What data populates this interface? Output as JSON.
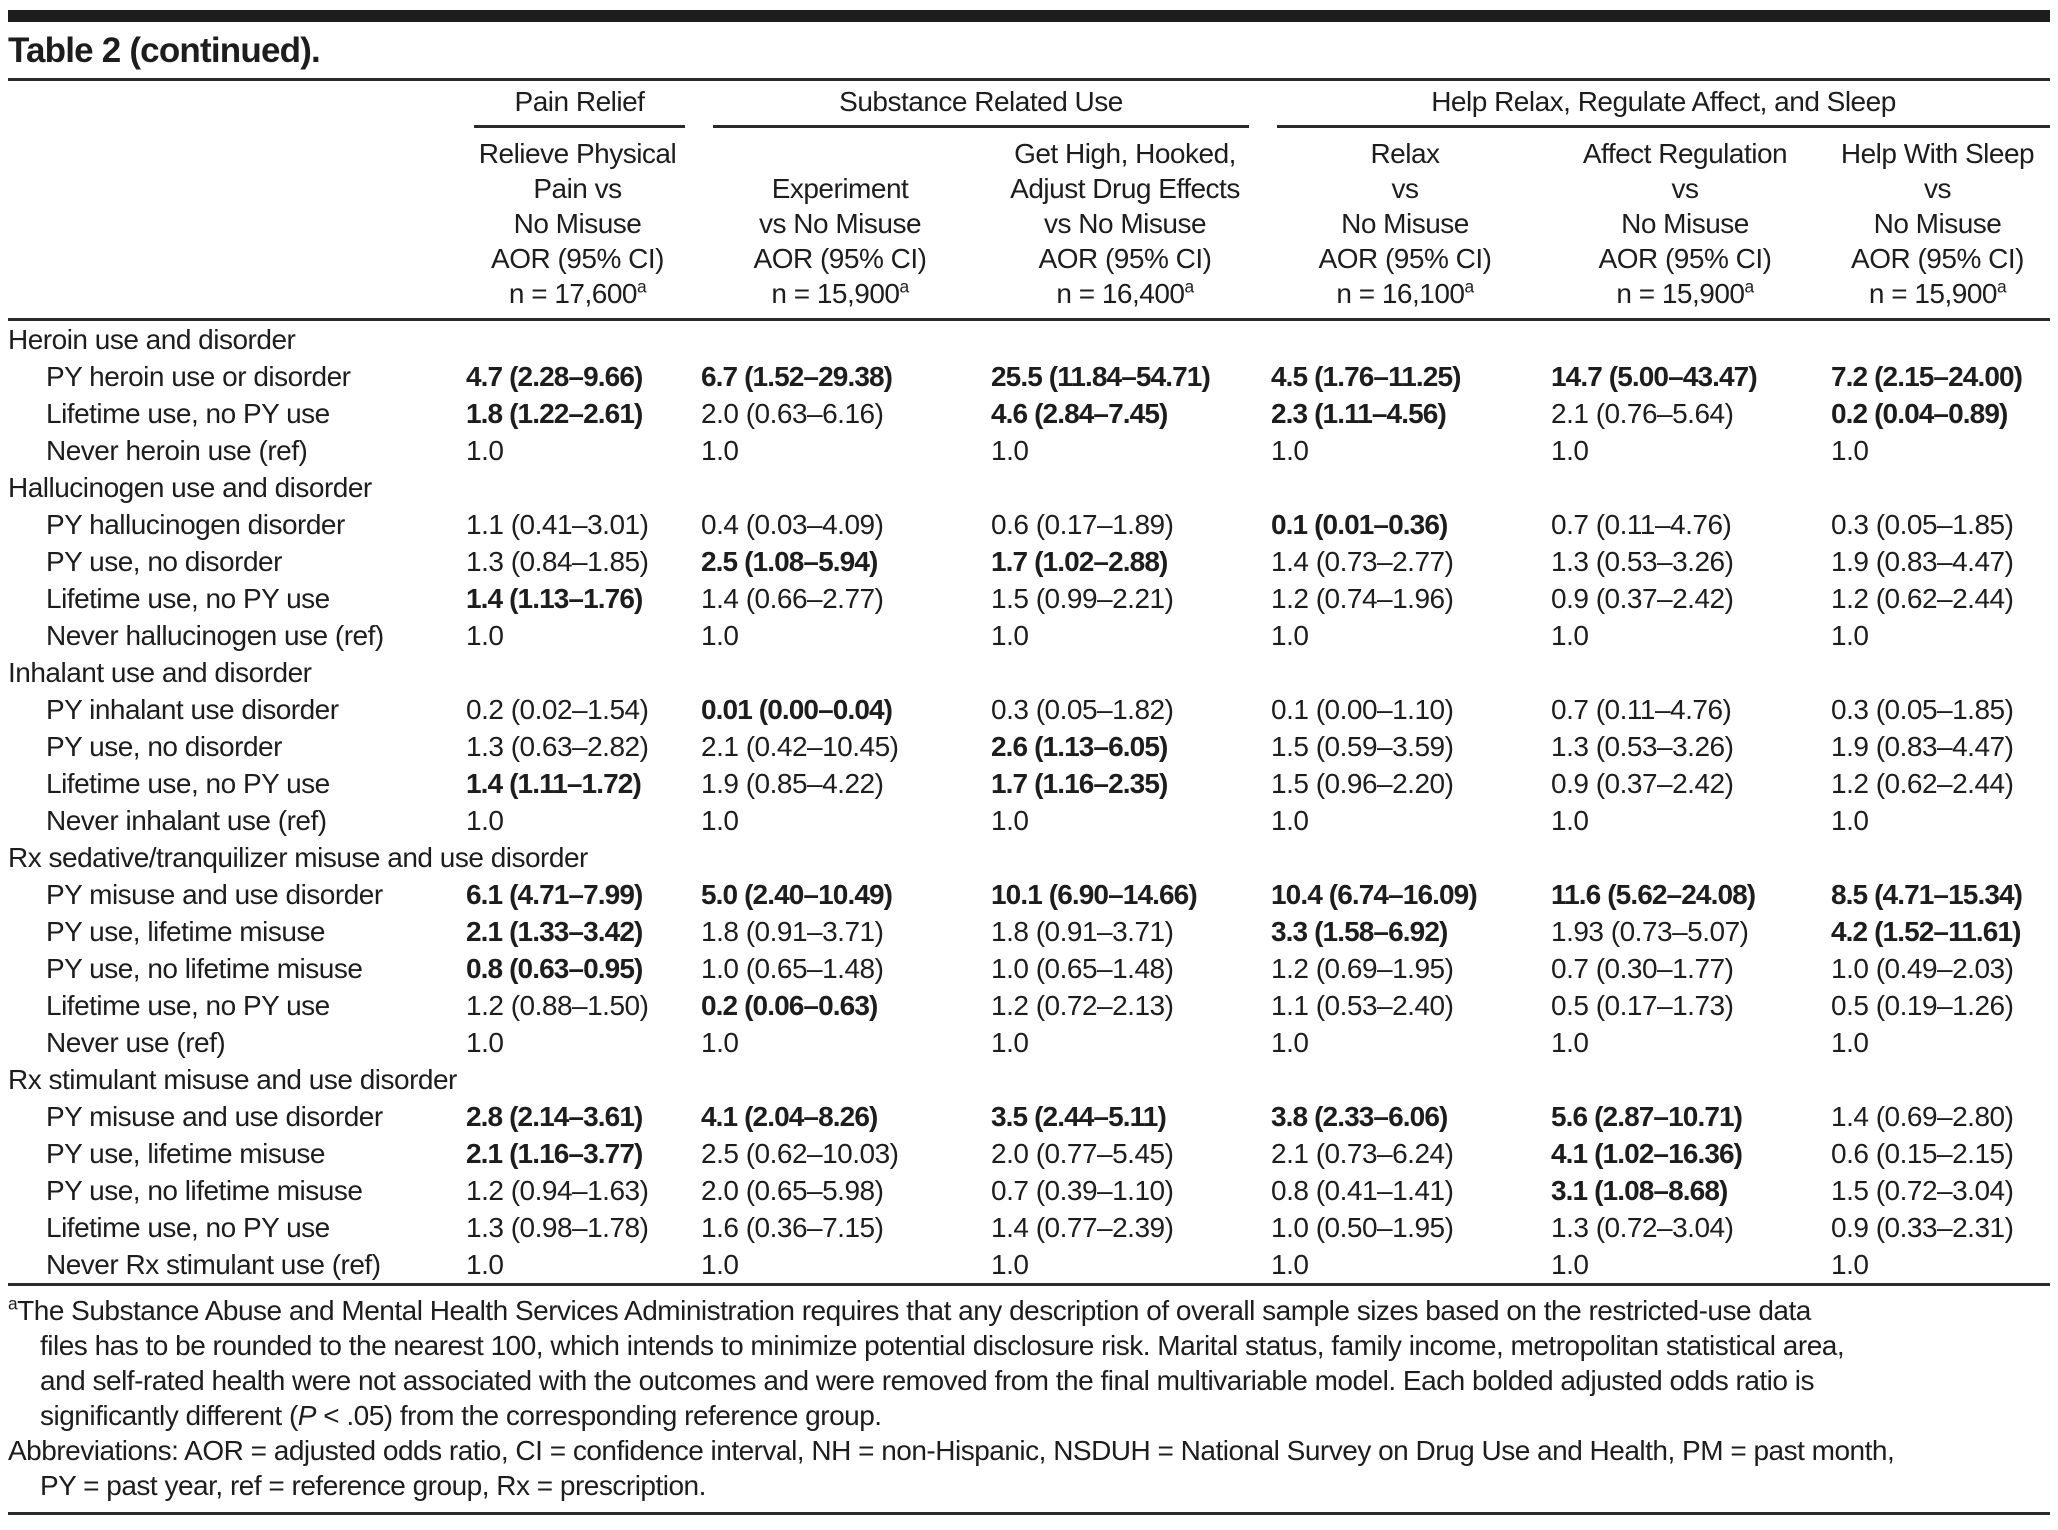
{
  "title": "Table 2 (continued).",
  "footnote_marker": "a",
  "header": {
    "groups": [
      {
        "label": "Pain Relief"
      },
      {
        "label": "Substance Related Use"
      },
      {
        "label": "Help Relax, Regulate Affect, and Sleep"
      }
    ],
    "columns": [
      {
        "lines": "Relieve Physical\nPain vs\nNo Misuse\nAOR (95% CI)",
        "n": "n = 17,600"
      },
      {
        "lines": "Experiment\nvs No Misuse\nAOR (95% CI)",
        "n": "n = 15,900"
      },
      {
        "lines": "Get High, Hooked,\nAdjust Drug Effects\nvs No Misuse\nAOR (95% CI)",
        "n": "n = 16,400"
      },
      {
        "lines": "Relax\nvs\nNo Misuse\nAOR (95% CI)",
        "n": "n = 16,100"
      },
      {
        "lines": "Affect Regulation\nvs\nNo Misuse\nAOR (95% CI)",
        "n": "n = 15,900"
      },
      {
        "lines": "Help With Sleep\nvs\nNo Misuse\nAOR (95% CI)",
        "n": "n = 15,900"
      }
    ]
  },
  "sections": [
    {
      "label": "Heroin use and disorder",
      "rows": [
        {
          "label": "PY heroin use or disorder",
          "cells": [
            {
              "t": "4.7 (2.28–9.66)",
              "b": true
            },
            {
              "t": "6.7 (1.52–29.38)",
              "b": true
            },
            {
              "t": "25.5 (11.84–54.71)",
              "b": true
            },
            {
              "t": "4.5 (1.76–11.25)",
              "b": true
            },
            {
              "t": "14.7 (5.00–43.47)",
              "b": true
            },
            {
              "t": "7.2 (2.15–24.00)",
              "b": true
            }
          ]
        },
        {
          "label": "Lifetime use, no PY use",
          "cells": [
            {
              "t": "1.8 (1.22–2.61)",
              "b": true
            },
            {
              "t": "2.0 (0.63–6.16)",
              "b": false
            },
            {
              "t": "4.6 (2.84–7.45)",
              "b": true
            },
            {
              "t": "2.3 (1.11–4.56)",
              "b": true
            },
            {
              "t": "2.1 (0.76–5.64)",
              "b": false
            },
            {
              "t": "0.2 (0.04–0.89)",
              "b": true
            }
          ]
        },
        {
          "label": "Never heroin use (ref)",
          "cells": [
            {
              "t": "1.0",
              "b": false
            },
            {
              "t": "1.0",
              "b": false
            },
            {
              "t": "1.0",
              "b": false
            },
            {
              "t": "1.0",
              "b": false
            },
            {
              "t": "1.0",
              "b": false
            },
            {
              "t": "1.0",
              "b": false
            }
          ]
        }
      ]
    },
    {
      "label": "Hallucinogen use and disorder",
      "rows": [
        {
          "label": "PY hallucinogen disorder",
          "cells": [
            {
              "t": "1.1 (0.41–3.01)",
              "b": false
            },
            {
              "t": "0.4 (0.03–4.09)",
              "b": false
            },
            {
              "t": "0.6 (0.17–1.89)",
              "b": false
            },
            {
              "t": "0.1 (0.01–0.36)",
              "b": true
            },
            {
              "t": "0.7 (0.11–4.76)",
              "b": false
            },
            {
              "t": "0.3 (0.05–1.85)",
              "b": false
            }
          ]
        },
        {
          "label": "PY use, no disorder",
          "cells": [
            {
              "t": "1.3 (0.84–1.85)",
              "b": false
            },
            {
              "t": "2.5 (1.08–5.94)",
              "b": true
            },
            {
              "t": "1.7 (1.02–2.88)",
              "b": true
            },
            {
              "t": "1.4 (0.73–2.77)",
              "b": false
            },
            {
              "t": "1.3 (0.53–3.26)",
              "b": false
            },
            {
              "t": "1.9 (0.83–4.47)",
              "b": false
            }
          ]
        },
        {
          "label": "Lifetime use, no PY use",
          "cells": [
            {
              "t": "1.4 (1.13–1.76)",
              "b": true
            },
            {
              "t": "1.4 (0.66–2.77)",
              "b": false
            },
            {
              "t": "1.5 (0.99–2.21)",
              "b": false
            },
            {
              "t": "1.2 (0.74–1.96)",
              "b": false
            },
            {
              "t": "0.9 (0.37–2.42)",
              "b": false
            },
            {
              "t": "1.2 (0.62–2.44)",
              "b": false
            }
          ]
        },
        {
          "label": "Never hallucinogen use (ref)",
          "cells": [
            {
              "t": "1.0",
              "b": false
            },
            {
              "t": "1.0",
              "b": false
            },
            {
              "t": "1.0",
              "b": false
            },
            {
              "t": "1.0",
              "b": false
            },
            {
              "t": "1.0",
              "b": false
            },
            {
              "t": "1.0",
              "b": false
            }
          ]
        }
      ]
    },
    {
      "label": "Inhalant use and disorder",
      "rows": [
        {
          "label": "PY inhalant use disorder",
          "cells": [
            {
              "t": "0.2 (0.02–1.54)",
              "b": false
            },
            {
              "t": "0.01 (0.00–0.04)",
              "b": true
            },
            {
              "t": "0.3 (0.05–1.82)",
              "b": false
            },
            {
              "t": "0.1 (0.00–1.10)",
              "b": false
            },
            {
              "t": "0.7 (0.11–4.76)",
              "b": false
            },
            {
              "t": "0.3 (0.05–1.85)",
              "b": false
            }
          ]
        },
        {
          "label": "PY use, no disorder",
          "cells": [
            {
              "t": "1.3 (0.63–2.82)",
              "b": false
            },
            {
              "t": "2.1 (0.42–10.45)",
              "b": false
            },
            {
              "t": "2.6 (1.13–6.05)",
              "b": true
            },
            {
              "t": "1.5 (0.59–3.59)",
              "b": false
            },
            {
              "t": "1.3 (0.53–3.26)",
              "b": false
            },
            {
              "t": "1.9 (0.83–4.47)",
              "b": false
            }
          ]
        },
        {
          "label": "Lifetime use, no PY use",
          "cells": [
            {
              "t": "1.4 (1.11–1.72)",
              "b": true
            },
            {
              "t": "1.9 (0.85–4.22)",
              "b": false
            },
            {
              "t": "1.7 (1.16–2.35)",
              "b": true
            },
            {
              "t": "1.5 (0.96–2.20)",
              "b": false
            },
            {
              "t": "0.9 (0.37–2.42)",
              "b": false
            },
            {
              "t": "1.2 (0.62–2.44)",
              "b": false
            }
          ]
        },
        {
          "label": "Never inhalant use (ref)",
          "cells": [
            {
              "t": "1.0",
              "b": false
            },
            {
              "t": "1.0",
              "b": false
            },
            {
              "t": "1.0",
              "b": false
            },
            {
              "t": "1.0",
              "b": false
            },
            {
              "t": "1.0",
              "b": false
            },
            {
              "t": "1.0",
              "b": false
            }
          ]
        }
      ]
    },
    {
      "label": "Rx sedative/tranquilizer misuse and use disorder",
      "rows": [
        {
          "label": "PY misuse and use disorder",
          "cells": [
            {
              "t": "6.1 (4.71–7.99)",
              "b": true
            },
            {
              "t": "5.0 (2.40–10.49)",
              "b": true
            },
            {
              "t": "10.1 (6.90–14.66)",
              "b": true
            },
            {
              "t": "10.4 (6.74–16.09)",
              "b": true
            },
            {
              "t": "11.6 (5.62–24.08)",
              "b": true
            },
            {
              "t": "8.5 (4.71–15.34)",
              "b": true
            }
          ]
        },
        {
          "label": "PY use, lifetime misuse",
          "cells": [
            {
              "t": "2.1 (1.33–3.42)",
              "b": true
            },
            {
              "t": "1.8 (0.91–3.71)",
              "b": false
            },
            {
              "t": "1.8 (0.91–3.71)",
              "b": false
            },
            {
              "t": "3.3 (1.58–6.92)",
              "b": true
            },
            {
              "t": "1.93 (0.73–5.07)",
              "b": false
            },
            {
              "t": "4.2 (1.52–11.61)",
              "b": true
            }
          ]
        },
        {
          "label": "PY use, no lifetime misuse",
          "cells": [
            {
              "t": "0.8 (0.63–0.95)",
              "b": true
            },
            {
              "t": "1.0 (0.65–1.48)",
              "b": false
            },
            {
              "t": "1.0 (0.65–1.48)",
              "b": false
            },
            {
              "t": "1.2 (0.69–1.95)",
              "b": false
            },
            {
              "t": "0.7 (0.30–1.77)",
              "b": false
            },
            {
              "t": "1.0 (0.49–2.03)",
              "b": false
            }
          ]
        },
        {
          "label": "Lifetime use, no PY use",
          "cells": [
            {
              "t": "1.2 (0.88–1.50)",
              "b": false
            },
            {
              "t": "0.2 (0.06–0.63)",
              "b": true
            },
            {
              "t": "1.2 (0.72–2.13)",
              "b": false
            },
            {
              "t": "1.1 (0.53–2.40)",
              "b": false
            },
            {
              "t": "0.5 (0.17–1.73)",
              "b": false
            },
            {
              "t": "0.5 (0.19–1.26)",
              "b": false
            }
          ]
        },
        {
          "label": "Never use (ref)",
          "cells": [
            {
              "t": "1.0",
              "b": false
            },
            {
              "t": "1.0",
              "b": false
            },
            {
              "t": "1.0",
              "b": false
            },
            {
              "t": "1.0",
              "b": false
            },
            {
              "t": "1.0",
              "b": false
            },
            {
              "t": "1.0",
              "b": false
            }
          ]
        }
      ]
    },
    {
      "label": "Rx stimulant misuse and use disorder",
      "rows": [
        {
          "label": "PY misuse and use disorder",
          "cells": [
            {
              "t": "2.8 (2.14–3.61)",
              "b": true
            },
            {
              "t": "4.1 (2.04–8.26)",
              "b": true
            },
            {
              "t": "3.5 (2.44–5.11)",
              "b": true
            },
            {
              "t": "3.8 (2.33–6.06)",
              "b": true
            },
            {
              "t": "5.6 (2.87–10.71)",
              "b": true
            },
            {
              "t": "1.4 (0.69–2.80)",
              "b": false
            }
          ]
        },
        {
          "label": "PY use, lifetime misuse",
          "cells": [
            {
              "t": "2.1 (1.16–3.77)",
              "b": true
            },
            {
              "t": "2.5 (0.62–10.03)",
              "b": false
            },
            {
              "t": "2.0 (0.77–5.45)",
              "b": false
            },
            {
              "t": "2.1 (0.73–6.24)",
              "b": false
            },
            {
              "t": "4.1 (1.02–16.36)",
              "b": true
            },
            {
              "t": "0.6 (0.15–2.15)",
              "b": false
            }
          ]
        },
        {
          "label": "PY use, no lifetime misuse",
          "cells": [
            {
              "t": "1.2 (0.94–1.63)",
              "b": false
            },
            {
              "t": "2.0 (0.65–5.98)",
              "b": false
            },
            {
              "t": "0.7 (0.39–1.10)",
              "b": false
            },
            {
              "t": "0.8 (0.41–1.41)",
              "b": false
            },
            {
              "t": "3.1 (1.08–8.68)",
              "b": true
            },
            {
              "t": "1.5 (0.72–3.04)",
              "b": false
            }
          ]
        },
        {
          "label": "Lifetime use, no PY use",
          "cells": [
            {
              "t": "1.3 (0.98–1.78)",
              "b": false
            },
            {
              "t": "1.6 (0.36–7.15)",
              "b": false
            },
            {
              "t": "1.4 (0.77–2.39)",
              "b": false
            },
            {
              "t": "1.0 (0.50–1.95)",
              "b": false
            },
            {
              "t": "1.3 (0.72–3.04)",
              "b": false
            },
            {
              "t": "0.9 (0.33–2.31)",
              "b": false
            }
          ]
        },
        {
          "label": "Never Rx stimulant use (ref)",
          "cells": [
            {
              "t": "1.0",
              "b": false
            },
            {
              "t": "1.0",
              "b": false
            },
            {
              "t": "1.0",
              "b": false
            },
            {
              "t": "1.0",
              "b": false
            },
            {
              "t": "1.0",
              "b": false
            },
            {
              "t": "1.0",
              "b": false
            }
          ]
        }
      ]
    }
  ],
  "footnotes": {
    "note_a": {
      "line1": "The Substance Abuse and Mental Health Services Administration requires that any description of overall sample sizes based on the restricted-use data",
      "line2": "files has to be rounded to the nearest 100, which intends to minimize potential disclosure risk. Marital status, family income, metropolitan statistical area,",
      "line3": "and self-rated health were not associated with the outcomes and were removed from the final multivariable model. Each bolded adjusted odds ratio is",
      "line4a": "significantly different (",
      "line4p": "P",
      "line4b": " < .05) from the corresponding reference group."
    },
    "abbreviations": {
      "line1": "Abbreviations: AOR = adjusted odds ratio, CI = confidence interval, NH = non-Hispanic, NSDUH = National Survey on Drug Use and Health, PM = past month,",
      "line2": "PY = past year, ref = reference group, Rx = prescription."
    }
  }
}
